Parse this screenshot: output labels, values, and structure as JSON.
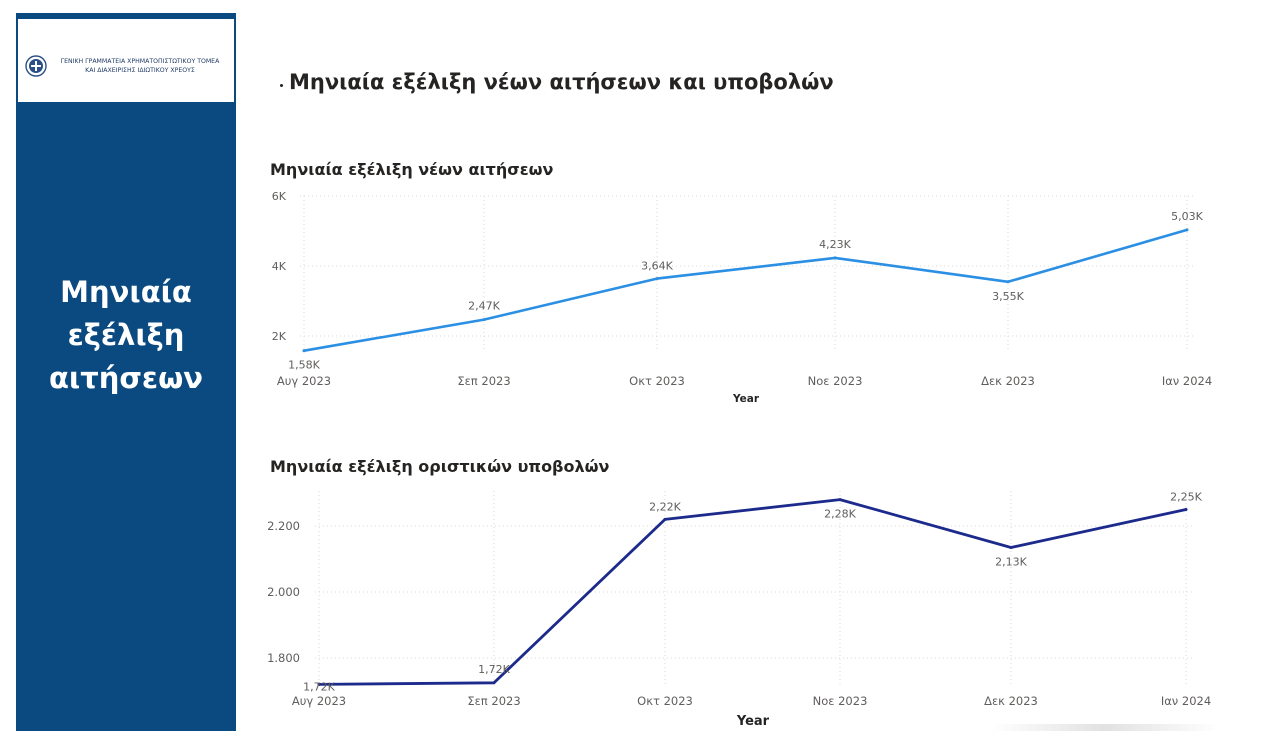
{
  "sidebar": {
    "logo_line1": "ΓΕΝΙΚΗ ΓΡΑΜΜΑΤΕΙΑ ΧΡΗΜΑΤΟΠΙΣΤΩΤΙΚΟΥ ΤΟΜΕΑ",
    "logo_line2": "ΚΑΙ ΔΙΑΧΕΙΡΙΣΗΣ ΙΔΙΩΤΙΚΟΥ ΧΡΕΟΥΣ",
    "title": "Μηνιαία\nεξέλιξη\nαιτήσεων",
    "background_color": "#0a4a80"
  },
  "page": {
    "title": "Μηνιαία εξέλιξη νέων αιτήσεων και υποβολών"
  },
  "chart_data": [
    {
      "type": "line",
      "title": "Μηνιαία εξέλιξη νέων αιτήσεων",
      "xlabel": "Year",
      "ylabel": "",
      "categories": [
        "Αυγ 2023",
        "Σεπ 2023",
        "Οκτ 2023",
        "Νοε 2023",
        "Δεκ 2023",
        "Ιαν 2024"
      ],
      "series": [
        {
          "values": [
            1580,
            2470,
            3640,
            4230,
            3550,
            5030
          ],
          "color": "#2b8fe3"
        }
      ],
      "data_labels": [
        "1,58K",
        "2,47K",
        "3,64K",
        "4,23K",
        "3,55K",
        "5,03K"
      ],
      "yticks": [
        2000,
        4000,
        6000
      ],
      "ytick_labels": [
        "2K",
        "4K",
        "6K"
      ],
      "ylim": [
        1400,
        6000
      ],
      "grid": true
    },
    {
      "type": "line",
      "title": "Μηνιαία εξέλιξη οριστικών υποβολών",
      "xlabel": "Year",
      "ylabel": "",
      "categories": [
        "Αυγ 2023",
        "Σεπ 2023",
        "Οκτ 2023",
        "Νοε 2023",
        "Δεκ 2023",
        "Ιαν 2024"
      ],
      "series": [
        {
          "values": [
            1720,
            1725,
            2220,
            2280,
            2135,
            2250
          ],
          "color": "#1c2a8c"
        }
      ],
      "data_labels": [
        "1,72K",
        "1,72K",
        "2,22K",
        "2,28K",
        "2,13K",
        "2,25K"
      ],
      "yticks": [
        1800,
        2000,
        2200
      ],
      "ytick_labels": [
        "1.800",
        "2.000",
        "2.200"
      ],
      "ylim": [
        1700,
        2300
      ],
      "grid": true
    }
  ]
}
